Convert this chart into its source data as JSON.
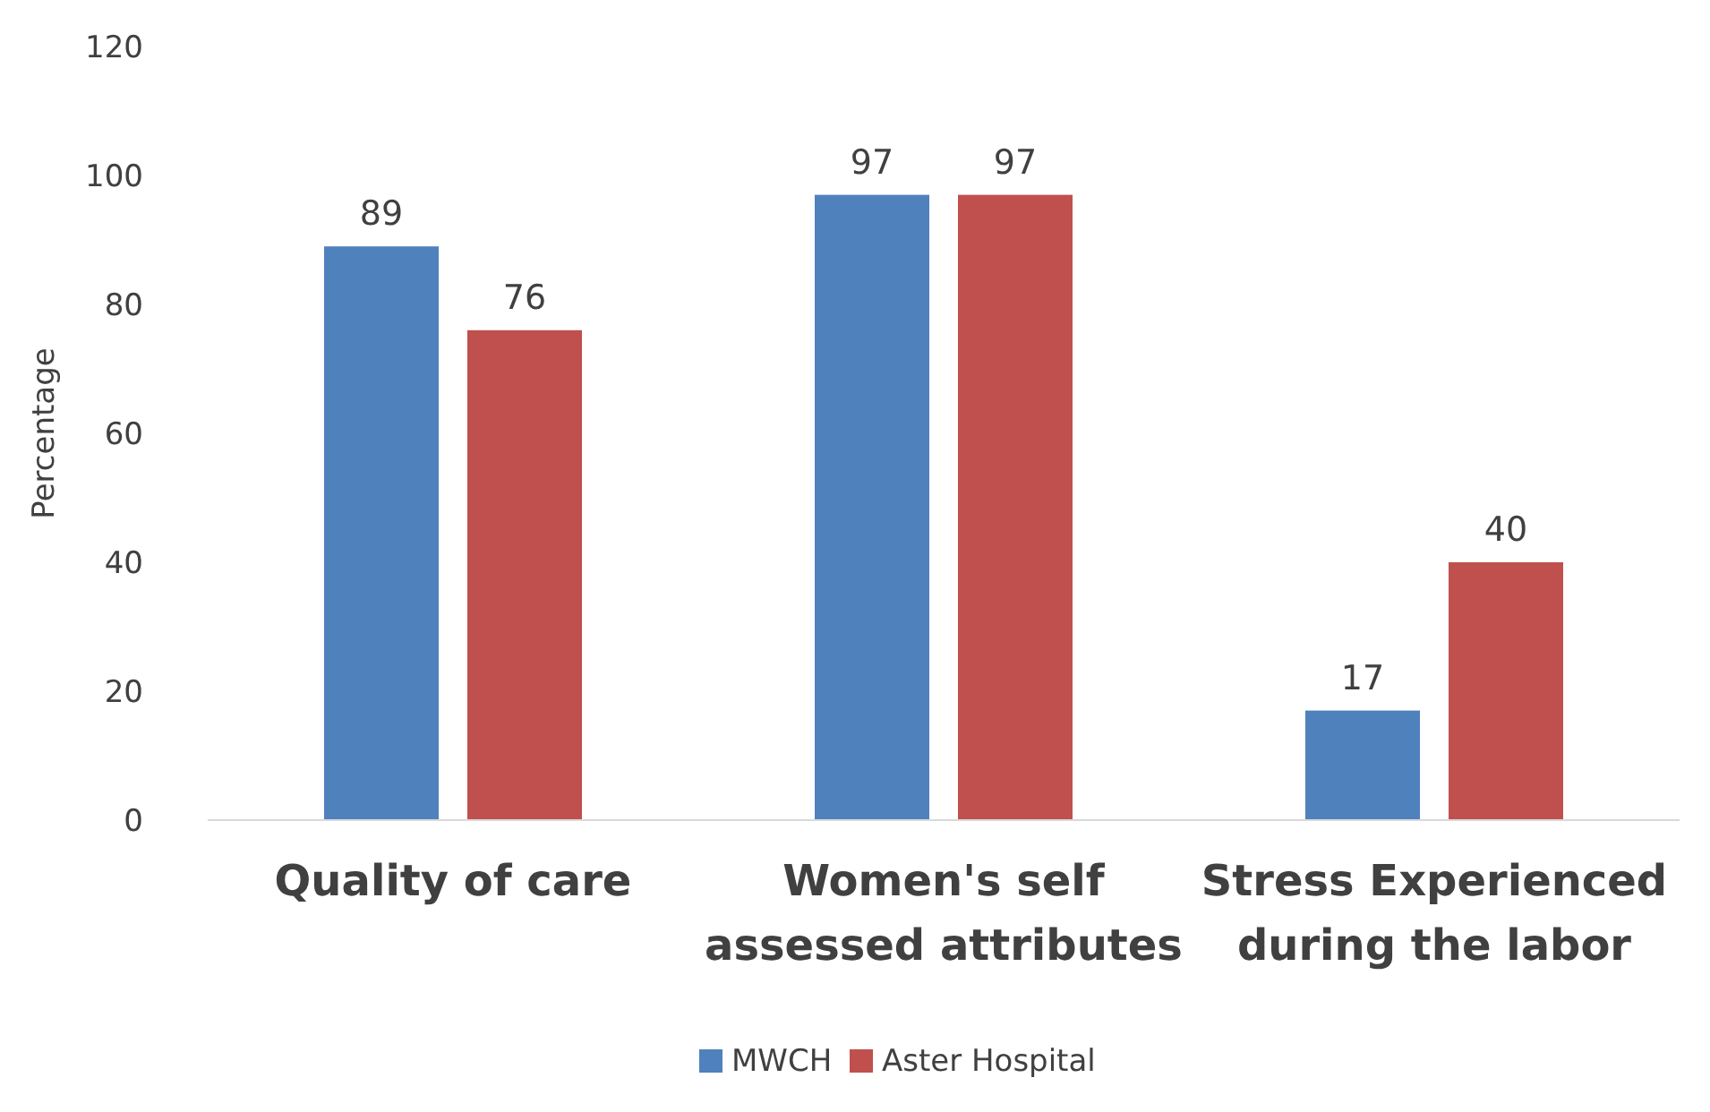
{
  "chart_data": {
    "type": "bar",
    "ylabel": "Percentage",
    "categories": [
      "Quality of care",
      "Women's self assessed attributes",
      "Stress Experienced during the labor"
    ],
    "series": [
      {
        "name": "MWCH",
        "color": "#4f81bd",
        "values": [
          89,
          97,
          17
        ]
      },
      {
        "name": "Aster Hospital",
        "color": "#c0504d",
        "values": [
          76,
          97,
          40
        ]
      }
    ],
    "ylim": [
      0,
      120
    ],
    "yticks": [
      0,
      20,
      40,
      60,
      80,
      100,
      120
    ],
    "data_labels": true,
    "legend": "bottom",
    "grid": false
  }
}
